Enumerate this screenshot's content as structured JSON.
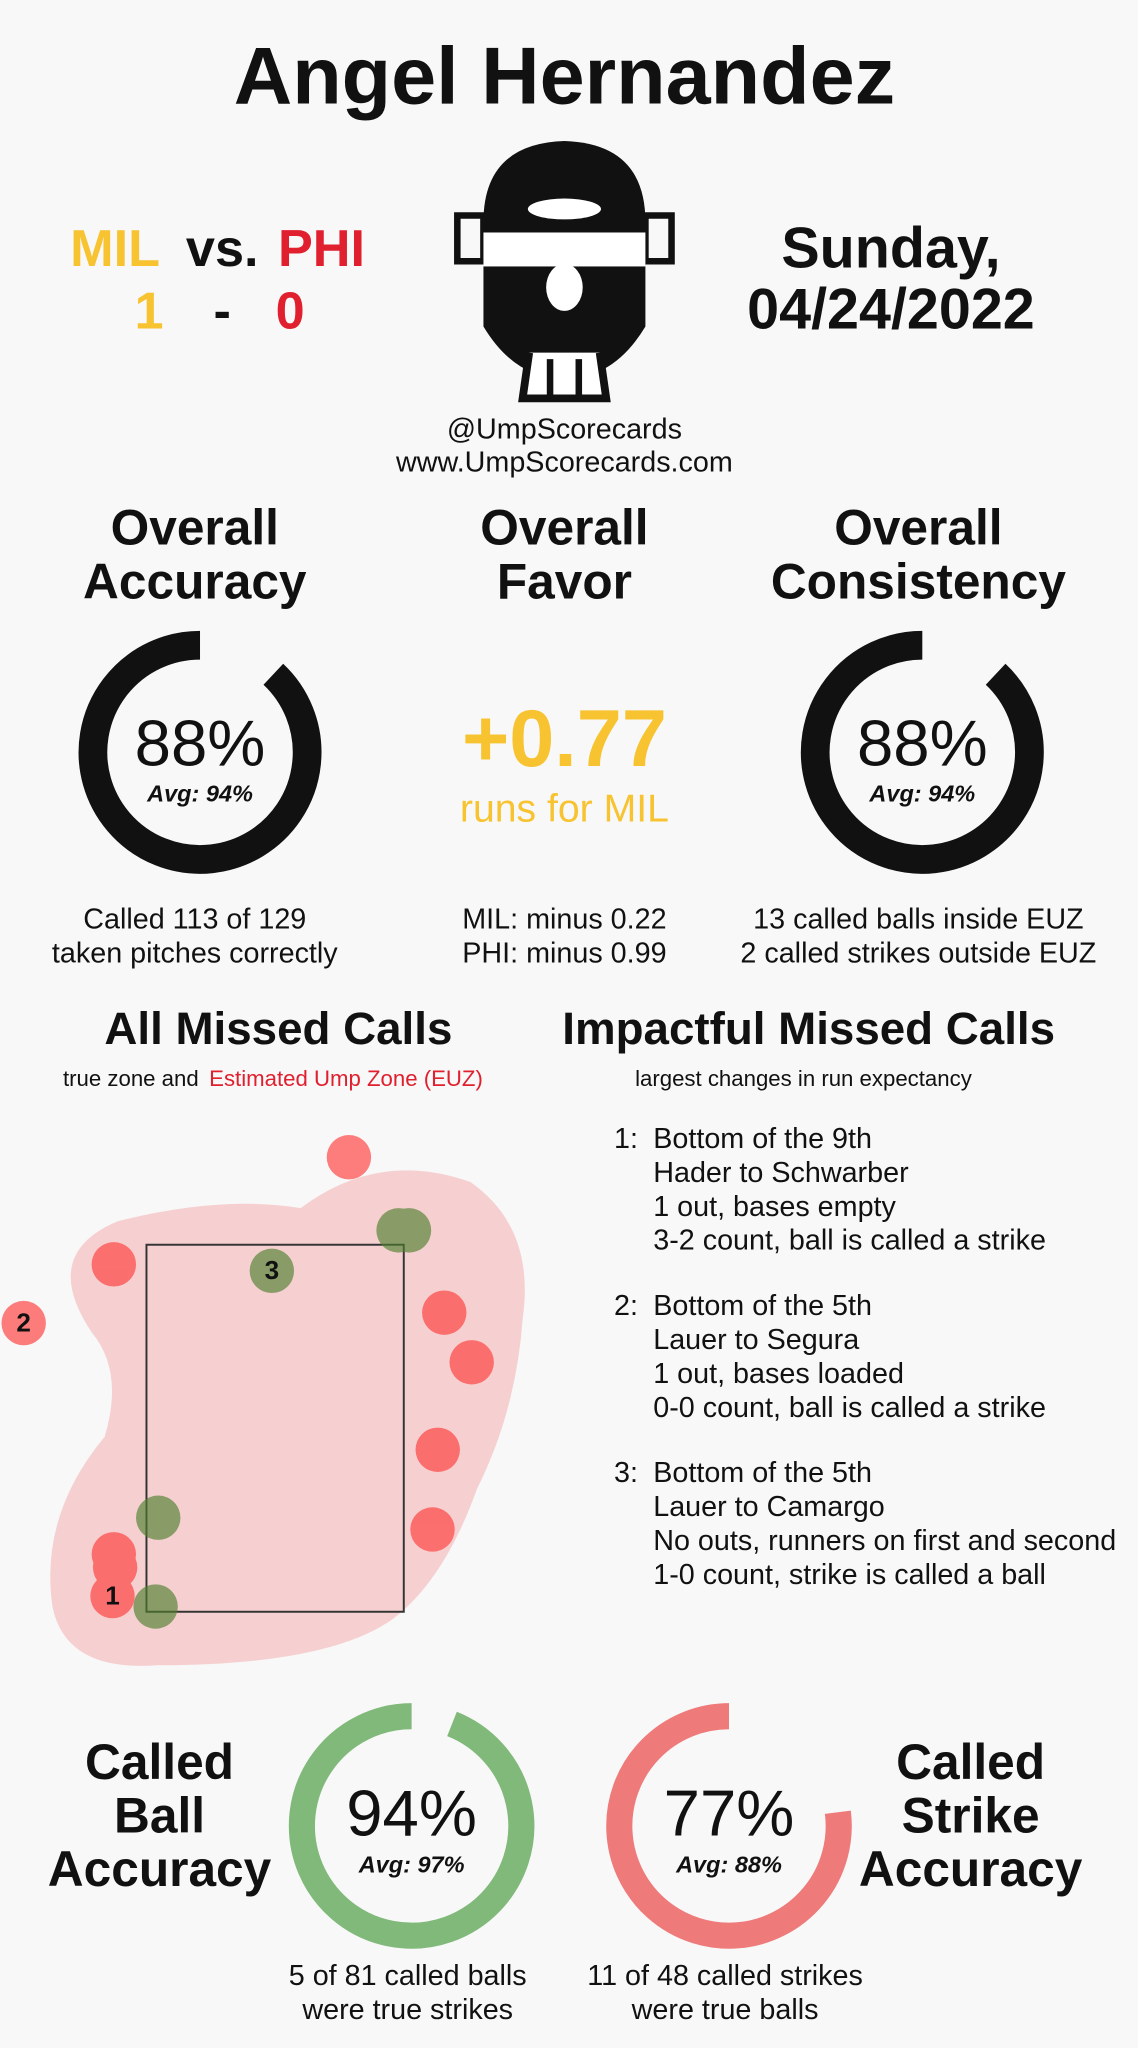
{
  "header": {
    "umpire": "Angel Hernandez",
    "away": "MIL",
    "vs": "vs.",
    "home": "PHI",
    "away_score": "1",
    "dash": "-",
    "home_score": "0",
    "date_line1": "Sunday,",
    "date_line2": "04/24/2022",
    "handle": "@UmpScorecards",
    "website": "www.UmpScorecards.com"
  },
  "accuracy": {
    "title_line1": "Overall",
    "title_line2": "Accuracy",
    "value": 88,
    "label": "88%",
    "avg": "Avg: 94%",
    "detail_line1": "Called 113 of 129",
    "detail_line2": "taken pitches correctly"
  },
  "favor": {
    "title_line1": "Overall",
    "title_line2": "Favor",
    "value": "+0.77",
    "unit": "runs for MIL",
    "detail_line1": "MIL: minus 0.22",
    "detail_line2": "PHI: minus 0.99"
  },
  "consistency": {
    "title_line1": "Overall",
    "title_line2": "Consistency",
    "value": 88,
    "label": "88%",
    "avg": "Avg: 94%",
    "detail_line1": "13 called balls inside EUZ",
    "detail_line2": "2 called strikes outside EUZ"
  },
  "missed_calls": {
    "title": "All Missed Calls",
    "subtitle": "true zone and",
    "subtitle_highlight": "Estimated Ump Zone (EUZ)",
    "labels": [
      "1",
      "2",
      "3"
    ]
  },
  "impactful": {
    "title": "Impactful Missed Calls",
    "subtitle": "largest changes in run expectancy",
    "items": [
      {
        "number": "1:",
        "lines": [
          "Bottom of the 9th",
          "Hader to Schwarber",
          "1 out, bases empty",
          "3-2 count, ball is called a strike"
        ]
      },
      {
        "number": "2:",
        "lines": [
          "Bottom of the 5th",
          "Lauer to Segura",
          "1 out, bases loaded",
          "0-0 count, ball is called a strike"
        ]
      },
      {
        "number": "3:",
        "lines": [
          "Bottom of the 5th",
          "Lauer to Camargo",
          "No outs, runners on first and second",
          "1-0 count, strike is called a ball"
        ]
      }
    ]
  },
  "ball_accuracy": {
    "title_lines": [
      "Called",
      "Ball",
      "Accuracy"
    ],
    "value": 94,
    "label": "94%",
    "avg": "Avg: 97%",
    "detail_lines": [
      "5 of 81 called balls",
      "were true strikes"
    ]
  },
  "strike_accuracy": {
    "title_lines": [
      "Called",
      "Strike",
      "Accuracy"
    ],
    "value": 77,
    "label": "77%",
    "avg": "Avg: 88%",
    "detail_lines": [
      "11 of 48 called strikes",
      "were true balls"
    ]
  }
}
